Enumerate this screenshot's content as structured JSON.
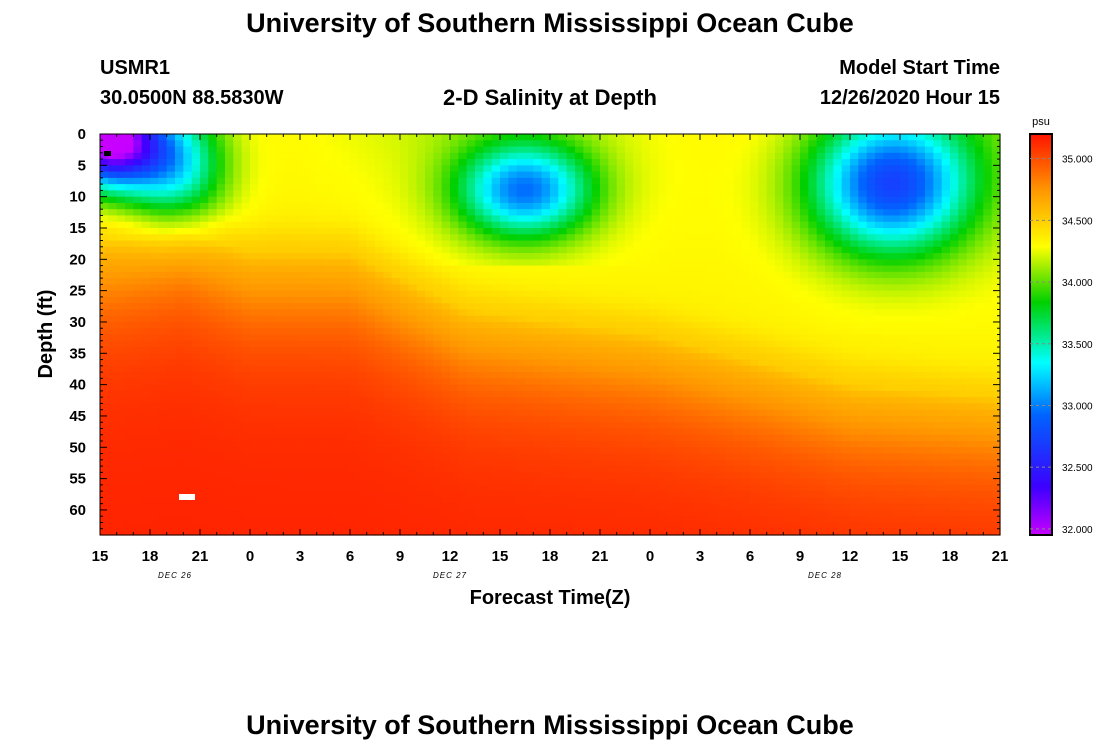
{
  "header": {
    "title_top": "University of Southern Mississippi Ocean Cube",
    "station": "USMR1",
    "coords": "30.0500N 88.5830W",
    "chart_name": "2-D Salinity at Depth",
    "model_label": "Model Start Time",
    "model_time": "12/26/2020 Hour 15",
    "title_bottom": "University of Southern Mississippi Ocean Cube"
  },
  "colors": {
    "background": "#ffffff",
    "ink": "#000000"
  },
  "chart_data": {
    "type": "heatmap",
    "title": "2-D Salinity at Depth",
    "xlabel": "Forecast Time(Z)",
    "ylabel": "Depth (ft)",
    "x_hours": [
      0,
      3,
      6,
      9,
      12,
      15,
      18,
      21,
      24,
      27,
      30,
      33,
      36,
      39,
      42,
      45,
      48,
      51,
      54
    ],
    "x_tick_labels": [
      "15",
      "18",
      "21",
      "0",
      "3",
      "6",
      "9",
      "12",
      "15",
      "18",
      "21",
      "0",
      "3",
      "6",
      "9",
      "12",
      "15",
      "18",
      "21"
    ],
    "date_labels": [
      {
        "label": "DEC 26",
        "hour": 4.5
      },
      {
        "label": "DEC 27",
        "hour": 21
      },
      {
        "label": "DEC 28",
        "hour": 43.5
      }
    ],
    "y_ticks": [
      0,
      5,
      10,
      15,
      20,
      25,
      30,
      35,
      40,
      45,
      50,
      55,
      60
    ],
    "ylim": [
      0,
      64
    ],
    "xlim": [
      0,
      54
    ],
    "colorbar": {
      "unit": "psu",
      "min": 31.95,
      "max": 35.2,
      "ticks": [
        "32.000",
        "32.500",
        "33.000",
        "33.500",
        "34.000",
        "34.500",
        "35.000"
      ],
      "tick_values": [
        32.0,
        32.5,
        33.0,
        33.5,
        34.0,
        34.5,
        35.0
      ]
    },
    "salinity_summary": {
      "surface_min": 32.0,
      "deep_max": 35.15,
      "fresh_pockets": [
        {
          "label": "DEC 26 15-18Z",
          "center_hour": 1,
          "center_depth_ft": 2,
          "value": 32.0
        },
        {
          "label": "DEC 27 15-18Z",
          "center_hour": 25.5,
          "center_depth_ft": 10,
          "value": 32.9
        },
        {
          "label": "DEC 28 12-18Z",
          "center_hour": 47,
          "center_depth_ft": 6,
          "value": 32.8
        }
      ],
      "halocline_depth_ft": [
        {
          "hour": 0,
          "depth": 17
        },
        {
          "hour": 5,
          "depth": 15
        },
        {
          "hour": 9,
          "depth": 19
        },
        {
          "hour": 15,
          "depth": 19
        },
        {
          "hour": 22,
          "depth": 28
        },
        {
          "hour": 33,
          "depth": 32
        },
        {
          "hour": 45,
          "depth": 40
        },
        {
          "hour": 54,
          "depth": 42
        }
      ]
    }
  }
}
